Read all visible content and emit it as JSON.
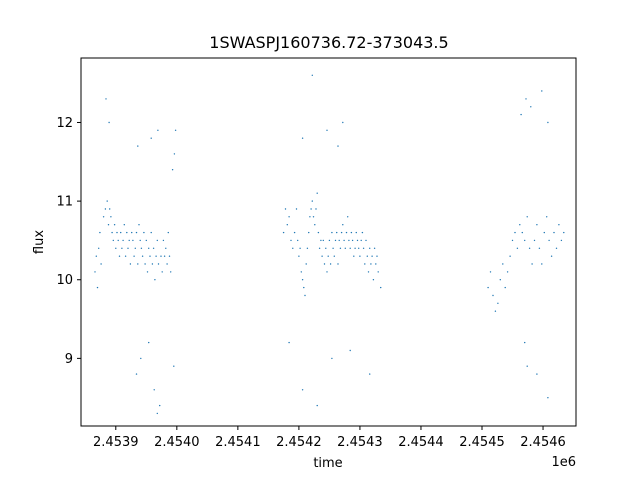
{
  "chart_data": {
    "type": "scatter",
    "title": "1SWASPJ160736.72-373043.5",
    "xlabel": "time",
    "ylabel": "flux",
    "x_offset_label": "1e6",
    "xlim": [
      2453843,
      2454654
    ],
    "ylim": [
      8.14,
      12.82
    ],
    "x_ticks": [
      {
        "value": 2453900,
        "label": "2.4539"
      },
      {
        "value": 2454000,
        "label": "2.4540"
      },
      {
        "value": 2454100,
        "label": "2.4541"
      },
      {
        "value": 2454200,
        "label": "2.4542"
      },
      {
        "value": 2454300,
        "label": "2.4543"
      },
      {
        "value": 2454400,
        "label": "2.4544"
      },
      {
        "value": 2454500,
        "label": "2.4545"
      },
      {
        "value": 2454600,
        "label": "2.4546"
      }
    ],
    "y_ticks": [
      {
        "value": 9,
        "label": "9"
      },
      {
        "value": 10,
        "label": "10"
      },
      {
        "value": 11,
        "label": "11"
      },
      {
        "value": 12,
        "label": "12"
      }
    ],
    "grid": false,
    "legend": "none",
    "point_color": "#1f77b4",
    "series": [
      {
        "x": [
          2453866,
          2453868,
          2453870,
          2453872,
          2453874,
          2453876,
          2453880,
          2453883,
          2453886,
          2453888,
          2453890,
          2453892,
          2453894,
          2453896,
          2453898,
          2453900,
          2453902,
          2453904,
          2453906,
          2453908,
          2453910,
          2453912,
          2453914,
          2453916,
          2453918,
          2453920,
          2453922,
          2453924,
          2453926,
          2453928,
          2453930,
          2453932,
          2453934,
          2453936,
          2453938,
          2453940,
          2453942,
          2453944,
          2453946,
          2453948,
          2453950,
          2453952,
          2453954,
          2453956,
          2453958,
          2453960,
          2453962,
          2453964,
          2453966,
          2453968,
          2453970,
          2453974,
          2453976,
          2453978,
          2453980,
          2453982,
          2453984,
          2453986,
          2453988,
          2453990,
          2453993,
          2453996,
          2453998,
          2453884,
          2453936,
          2453958,
          2453972,
          2453968,
          2453934,
          2453954,
          2453969,
          2453963,
          2453941,
          2453889,
          2453995,
          2454175,
          2454178,
          2454181,
          2454184,
          2454187,
          2454190,
          2454193,
          2454196,
          2454198,
          2454200,
          2454202,
          2454204,
          2454206,
          2454208,
          2454210,
          2454212,
          2454214,
          2454216,
          2454218,
          2454220,
          2454222,
          2454224,
          2454226,
          2454228,
          2454230,
          2454232,
          2454234,
          2454236,
          2454238,
          2454240,
          2454242,
          2454244,
          2454246,
          2454248,
          2454250,
          2454252,
          2454254,
          2454256,
          2454258,
          2454260,
          2454262,
          2454264,
          2454266,
          2454268,
          2454270,
          2454272,
          2454274,
          2454276,
          2454278,
          2454280,
          2454282,
          2454284,
          2454286,
          2454288,
          2454290,
          2454292,
          2454294,
          2454296,
          2454298,
          2454300,
          2454302,
          2454304,
          2454306,
          2454308,
          2454310,
          2454312,
          2454314,
          2454316,
          2454318,
          2454320,
          2454322,
          2454324,
          2454326,
          2454328,
          2454330,
          2454334,
          2454206,
          2454222,
          2454230,
          2454246,
          2454254,
          2454264,
          2454272,
          2454284,
          2454316,
          2454206,
          2454184,
          2454510,
          2454514,
          2454518,
          2454522,
          2454526,
          2454530,
          2454534,
          2454538,
          2454542,
          2454546,
          2454550,
          2454554,
          2454558,
          2454562,
          2454566,
          2454570,
          2454574,
          2454578,
          2454582,
          2454586,
          2454590,
          2454594,
          2454598,
          2454602,
          2454606,
          2454610,
          2454614,
          2454618,
          2454622,
          2454626,
          2454630,
          2454634,
          2454572,
          2454564,
          2454580,
          2454598,
          2454608,
          2454570,
          2454608,
          2454574,
          2454590
        ],
        "y": [
          10.1,
          10.3,
          9.9,
          10.4,
          10.6,
          10.2,
          10.8,
          10.9,
          11.0,
          10.7,
          10.9,
          10.8,
          10.6,
          10.5,
          10.7,
          10.4,
          10.6,
          10.5,
          10.3,
          10.6,
          10.4,
          10.5,
          10.7,
          10.3,
          10.6,
          10.4,
          10.5,
          10.2,
          10.6,
          10.5,
          10.3,
          10.4,
          10.6,
          10.2,
          10.7,
          10.5,
          10.4,
          10.3,
          10.6,
          10.2,
          10.5,
          10.1,
          10.4,
          10.3,
          10.6,
          10.2,
          10.4,
          10.0,
          10.3,
          10.5,
          10.2,
          10.3,
          10.1,
          10.5,
          10.3,
          10.4,
          10.2,
          10.6,
          10.3,
          10.1,
          11.4,
          11.6,
          11.9,
          12.3,
          11.7,
          11.8,
          8.4,
          8.3,
          8.8,
          9.2,
          11.9,
          8.6,
          9.0,
          12.0,
          8.9,
          10.6,
          10.9,
          10.7,
          10.8,
          10.5,
          10.4,
          10.6,
          10.9,
          10.5,
          10.3,
          10.4,
          10.1,
          10.0,
          9.9,
          9.8,
          10.2,
          10.4,
          10.6,
          10.8,
          10.9,
          11.0,
          10.8,
          10.7,
          10.9,
          11.1,
          10.6,
          10.4,
          10.5,
          10.3,
          10.5,
          10.2,
          10.4,
          10.1,
          10.3,
          10.5,
          10.2,
          10.6,
          10.4,
          10.3,
          10.5,
          10.6,
          10.2,
          10.5,
          10.4,
          10.6,
          10.7,
          10.5,
          10.4,
          10.6,
          10.8,
          10.5,
          10.4,
          10.6,
          10.5,
          10.3,
          10.4,
          10.6,
          10.5,
          10.4,
          10.3,
          10.5,
          10.6,
          10.4,
          10.2,
          10.5,
          10.3,
          10.1,
          10.4,
          10.2,
          10.3,
          10.0,
          10.4,
          10.2,
          10.3,
          10.1,
          9.9,
          11.8,
          12.6,
          8.4,
          11.9,
          9.0,
          11.7,
          12.0,
          9.1,
          8.8,
          8.6,
          9.2,
          9.9,
          10.1,
          9.8,
          9.6,
          9.7,
          10.0,
          10.2,
          9.9,
          10.1,
          10.3,
          10.5,
          10.6,
          10.4,
          10.7,
          10.6,
          10.5,
          10.8,
          10.4,
          10.2,
          10.5,
          10.7,
          10.4,
          10.2,
          10.6,
          10.8,
          10.5,
          10.3,
          10.6,
          10.4,
          10.7,
          10.5,
          10.6,
          12.3,
          12.1,
          12.2,
          12.4,
          12.0,
          9.2,
          8.5,
          8.9,
          8.8
        ]
      }
    ]
  }
}
